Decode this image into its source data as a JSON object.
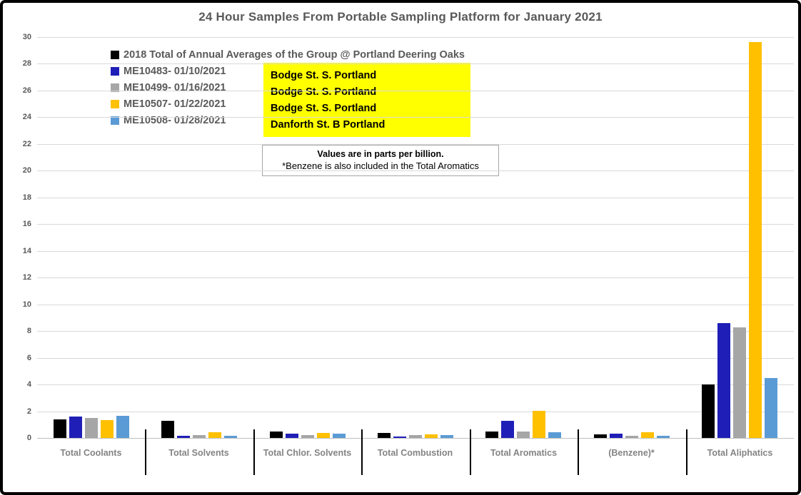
{
  "title": "24 Hour Samples From Portable Sampling Platform for January 2021",
  "legend": {
    "items": [
      {
        "label": "2018 Total of Annual Averages of the Group @ Portland Deering Oaks",
        "color": "#000000"
      },
      {
        "label": "ME10483- 01/10/2021",
        "color": "#1f1fb8"
      },
      {
        "label": "ME10499- 01/16/2021",
        "color": "#a6a6a6"
      },
      {
        "label": "ME10507- 01/22/2021",
        "color": "#ffc000"
      },
      {
        "label": "ME10508- 01/28/2021",
        "color": "#5b9bd5"
      }
    ]
  },
  "site_callout": {
    "background": "#ffff00",
    "lines": [
      "Bodge St.  S. Portland",
      "Bodge St.  S. Portland",
      "Bodge St.  S. Portland",
      "Danforth St. B Portland"
    ]
  },
  "note_box": {
    "line1": "Values are in parts per billion.",
    "line2": "*Benzene is also included in the Total Aromatics"
  },
  "chart_data": {
    "type": "bar",
    "title": "24 Hour Samples From Portable Sampling Platform for January 2021",
    "units": "parts per billion",
    "categories": [
      "Total Coolants",
      "Total Solvents",
      "Total Chlor. Solvents",
      "Total Combustion",
      "Total Aromatics",
      "(Benzene)*",
      "Total Aliphatics"
    ],
    "series": [
      {
        "name": "2018 Total of Annual Averages of the Group @ Portland Deering Oaks",
        "color": "#000000",
        "values": [
          1.4,
          1.3,
          0.5,
          0.35,
          0.5,
          0.25,
          4.0
        ]
      },
      {
        "name": "ME10483- 01/10/2021",
        "color": "#1f1fb8",
        "values": [
          1.6,
          0.15,
          0.3,
          0.1,
          1.3,
          0.3,
          8.6
        ]
      },
      {
        "name": "ME10499- 01/16/2021",
        "color": "#a6a6a6",
        "values": [
          1.5,
          0.2,
          0.2,
          0.2,
          0.5,
          0.15,
          8.3
        ]
      },
      {
        "name": "ME10507- 01/22/2021",
        "color": "#ffc000",
        "values": [
          1.35,
          0.45,
          0.35,
          0.25,
          2.05,
          0.45,
          29.6
        ]
      },
      {
        "name": "ME10508- 01/28/2021",
        "color": "#5b9bd5",
        "values": [
          1.65,
          0.15,
          0.3,
          0.2,
          0.45,
          0.15,
          4.5
        ]
      }
    ],
    "ylim": [
      0,
      30
    ],
    "ytick_step": 2,
    "grid": true,
    "gridline_color": "#d9d9d9",
    "legend_position": "top-left-inside"
  }
}
